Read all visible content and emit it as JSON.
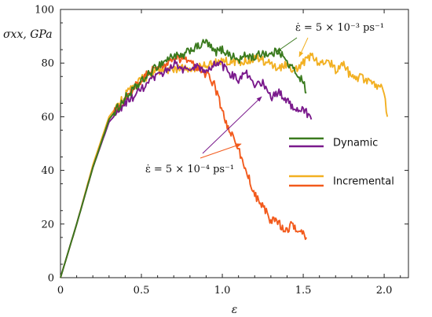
{
  "chart_data": {
    "type": "line",
    "xlabel": "ε",
    "ylabel": "σxx, GPa",
    "xlim": [
      0,
      2.15
    ],
    "ylim": [
      0,
      100
    ],
    "x_ticks": [
      "0",
      "0.5",
      "1.0",
      "1.5",
      "2.0"
    ],
    "x_tick_values": [
      0,
      0.5,
      1.0,
      1.5,
      2.0
    ],
    "y_ticks": [
      "0",
      "20",
      "40",
      "60",
      "80",
      "100"
    ],
    "y_tick_values": [
      0,
      20,
      40,
      60,
      80,
      100
    ],
    "grid": false,
    "legend": {
      "placement": "right",
      "groups": [
        {
          "label": "Dynamic",
          "colors": [
            "#3a7a1e",
            "#7a1a8c"
          ]
        },
        {
          "label": "Incremental",
          "colors": [
            "#f2b022",
            "#f25a1c"
          ]
        }
      ]
    },
    "annotations": [
      {
        "text": "ε̇ = 5 × 10⁻³ ps⁻¹",
        "color_arrows": [
          "#3a7a1e",
          "#f2b022"
        ]
      },
      {
        "text": "ε̇ = 5 × 10⁻⁴ ps⁻¹",
        "color_arrows": [
          "#7a1a8c",
          "#f25a1c"
        ]
      }
    ],
    "series": [
      {
        "group": "Dynamic",
        "rate": "5e-3",
        "color": "#3a7a1e",
        "x": [
          0,
          0.1,
          0.2,
          0.3,
          0.4,
          0.5,
          0.55,
          0.6,
          0.65,
          0.7,
          0.75,
          0.8,
          0.85,
          0.9,
          0.95,
          1.0,
          1.05,
          1.1,
          1.15,
          1.2,
          1.25,
          1.3,
          1.35,
          1.4,
          1.45,
          1.5,
          1.52
        ],
        "y": [
          0,
          20,
          41,
          59,
          67,
          73,
          76,
          79,
          81,
          83,
          82,
          85,
          86,
          88,
          84,
          85,
          83,
          81,
          83,
          82,
          84,
          83,
          85,
          80,
          77,
          73,
          69
        ]
      },
      {
        "group": "Dynamic",
        "rate": "5e-4",
        "color": "#7a1a8c",
        "x": [
          0,
          0.1,
          0.2,
          0.3,
          0.4,
          0.5,
          0.55,
          0.6,
          0.65,
          0.7,
          0.75,
          0.8,
          0.85,
          0.9,
          0.95,
          1.0,
          1.05,
          1.1,
          1.15,
          1.2,
          1.25,
          1.3,
          1.35,
          1.4,
          1.45,
          1.5,
          1.55
        ],
        "y": [
          0,
          20,
          41,
          58,
          65,
          70,
          73,
          75,
          77,
          80,
          78,
          77,
          79,
          76,
          80,
          79,
          76,
          74,
          76,
          71,
          73,
          67,
          69,
          66,
          63,
          63,
          59
        ]
      },
      {
        "group": "Incremental",
        "rate": "5e-3",
        "color": "#f2b022",
        "x": [
          0,
          0.1,
          0.2,
          0.3,
          0.4,
          0.5,
          0.6,
          0.7,
          0.8,
          0.9,
          1.0,
          1.1,
          1.2,
          1.25,
          1.3,
          1.35,
          1.4,
          1.45,
          1.5,
          1.55,
          1.6,
          1.65,
          1.7,
          1.75,
          1.8,
          1.85,
          1.9,
          1.95,
          2.0,
          2.02
        ],
        "y": [
          0,
          20,
          42,
          60,
          68,
          74,
          77,
          78,
          78,
          79,
          81,
          80,
          82,
          81,
          80,
          78,
          80,
          77,
          80,
          83,
          80,
          82,
          77,
          80,
          74,
          75,
          73,
          72,
          70,
          60
        ]
      },
      {
        "group": "Incremental",
        "rate": "5e-4",
        "color": "#f25a1c",
        "x": [
          0,
          0.1,
          0.2,
          0.3,
          0.4,
          0.5,
          0.55,
          0.6,
          0.65,
          0.7,
          0.75,
          0.8,
          0.85,
          0.9,
          0.95,
          1.0,
          1.03,
          1.06,
          1.1,
          1.13,
          1.16,
          1.2,
          1.23,
          1.26,
          1.3,
          1.33,
          1.36,
          1.4,
          1.43,
          1.46,
          1.5,
          1.52
        ],
        "y": [
          0,
          20,
          41,
          59,
          67,
          74,
          77,
          78,
          80,
          81,
          82,
          80,
          78,
          76,
          72,
          62,
          57,
          53,
          48,
          42,
          38,
          31,
          28,
          26,
          20,
          23,
          19,
          18,
          20,
          18,
          17,
          15
        ]
      }
    ]
  }
}
